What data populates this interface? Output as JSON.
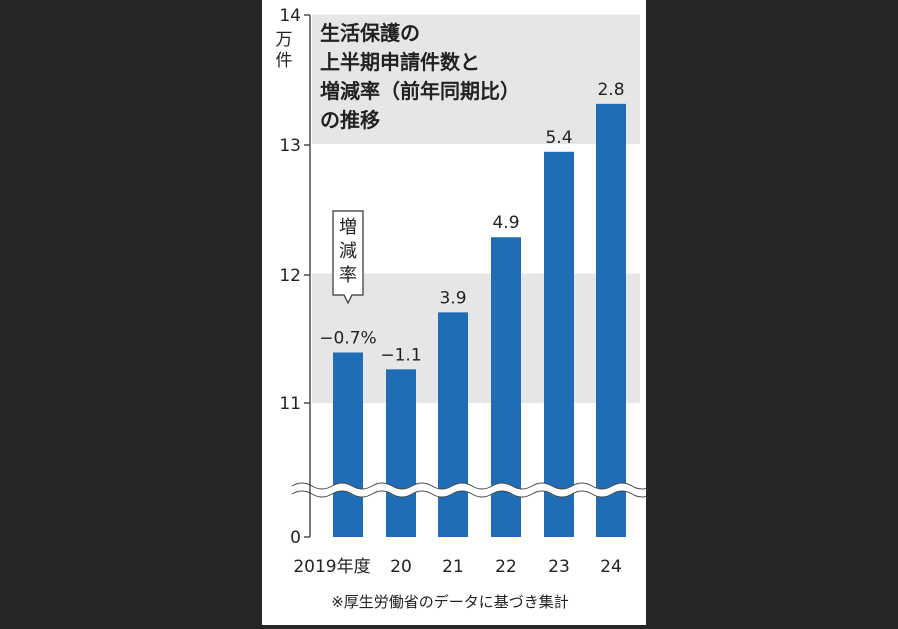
{
  "chart_data": {
    "type": "bar",
    "title": "生活保護の上半期申請件数と増減率（前年同期比）の推移",
    "title_lines": [
      "生活保護の",
      "上半期申請件数と",
      "増減率（前年同期比）",
      "の推移"
    ],
    "ylabel": "万件",
    "ylabel_lines": [
      "万",
      "件"
    ],
    "categories": [
      "2019年度",
      "20",
      "21",
      "22",
      "23",
      "24"
    ],
    "values": [
      11.39,
      11.26,
      11.7,
      12.28,
      12.94,
      13.31
    ],
    "data_labels": [
      "−0.7%",
      "−1.1",
      "3.9",
      "4.9",
      "5.4",
      "2.8"
    ],
    "yticks": [
      "0",
      "11",
      "12",
      "13",
      "14"
    ],
    "ylim": [
      11,
      14
    ],
    "axis_break": true,
    "grid_bands": [
      [
        11,
        12
      ],
      [
        13,
        14
      ]
    ],
    "callout": "増減率",
    "source": "※厚生労働省のデータに基づき集計",
    "colors": {
      "bar": "#1f6db4",
      "band": "#e6e6e6",
      "background": "#262626",
      "panel": "#ffffff"
    }
  }
}
